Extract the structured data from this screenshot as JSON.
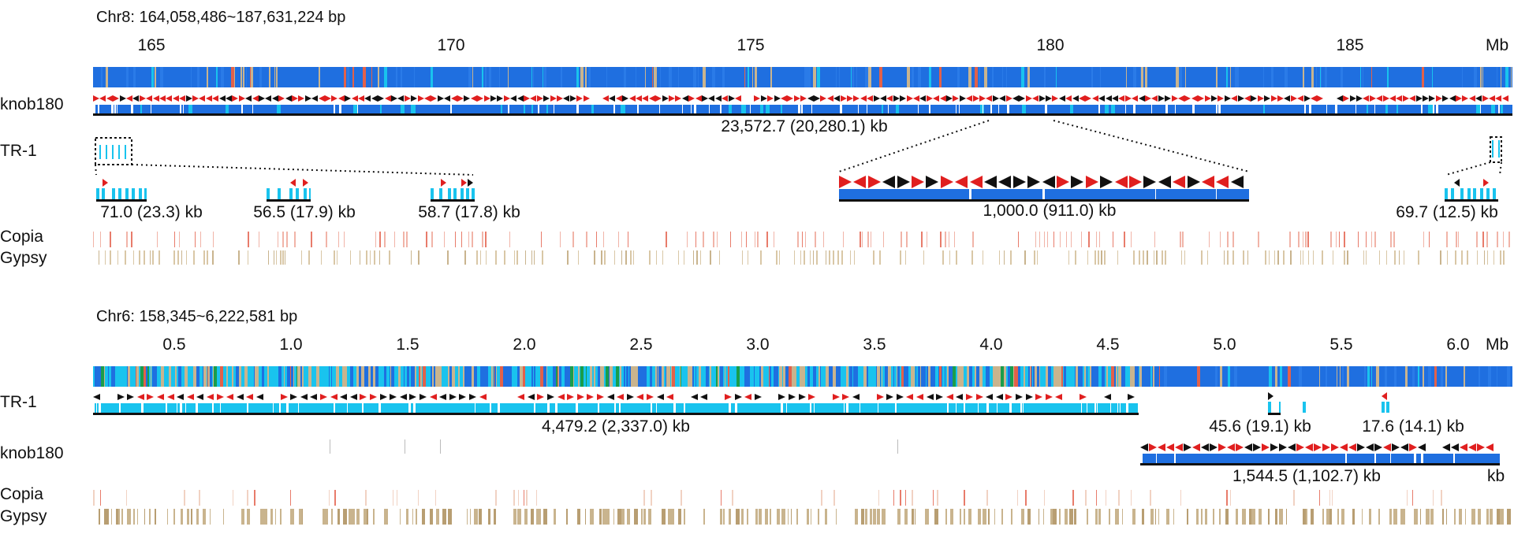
{
  "colors": {
    "heatmap_base": "#1f6fe0",
    "heatmap_cyan": "#19c3ee",
    "heatmap_tan": "#c9b48e",
    "heatmap_red": "#e2614a",
    "heatmap_green": "#1a9d4a",
    "array_blue": "#1f6fe0",
    "array_cyan": "#19c3ee",
    "arrow_red": "#e01f1f",
    "arrow_black": "#111111",
    "copia": "#e87c6b",
    "gypsy": "#c9b48e"
  },
  "panel_chr8": {
    "title": "Chr8: 164,058,486~187,631,224 bp",
    "ticks": [
      "165",
      "170",
      "175",
      "180",
      "185"
    ],
    "unit": "Mb",
    "rows": {
      "knob180": "knob180",
      "tr1": "TR-1",
      "copia": "Copia",
      "gypsy": "Gypsy"
    },
    "main_array_size": "23,572.7 (20,280.1) kb",
    "zoom_size": "1,000.0 (911.0) kb",
    "tr1_sizes": [
      "71.0 (23.3) kb",
      "56.5 (17.9) kb",
      "58.7 (17.8) kb",
      "69.7 (12.5) kb"
    ]
  },
  "panel_chr6": {
    "title": "Chr6: 158,345~6,222,581 bp",
    "ticks": [
      "0.5",
      "1.0",
      "1.5",
      "2.0",
      "2.5",
      "3.0",
      "3.5",
      "4.0",
      "4.5",
      "5.0",
      "5.5",
      "6.0"
    ],
    "unit": "Mb",
    "rows": {
      "tr1": "TR-1",
      "knob180": "knob180",
      "copia": "Copia",
      "gypsy": "Gypsy"
    },
    "tr1_main_size": "4,479.2 (2,337.0) kb",
    "tr1_small_sizes": [
      "45.6 (19.1) kb",
      "17.6 (14.1) kb"
    ],
    "knob_size": "1,544.5 (1,102.7) kb",
    "knob_unit": "kb"
  }
}
